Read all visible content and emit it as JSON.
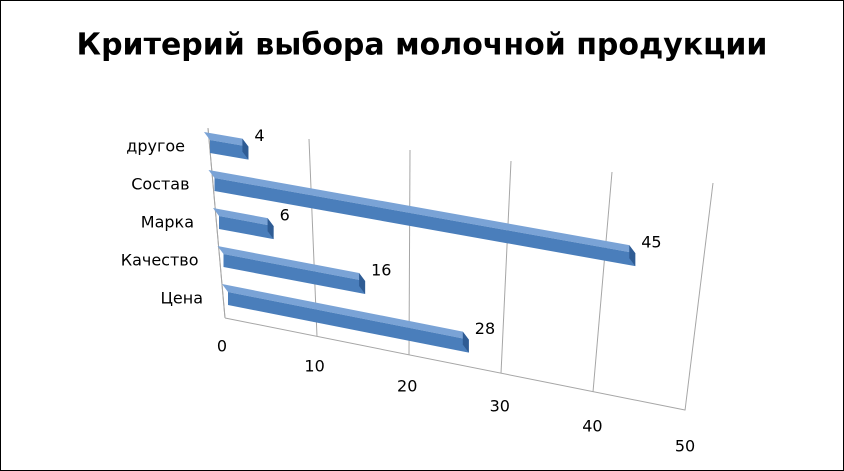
{
  "chart_data": {
    "type": "bar3d",
    "title": "Критерий выбора молочной продукции",
    "categories": [
      "Цена",
      "Качество",
      "Марка",
      "Состав",
      "другое"
    ],
    "values": [
      28,
      16,
      6,
      45,
      4
    ],
    "color": "#4a7ebb",
    "xlim": [
      0,
      50
    ],
    "xticks": [
      0,
      10,
      20,
      30,
      40,
      50
    ],
    "grid": true
  }
}
